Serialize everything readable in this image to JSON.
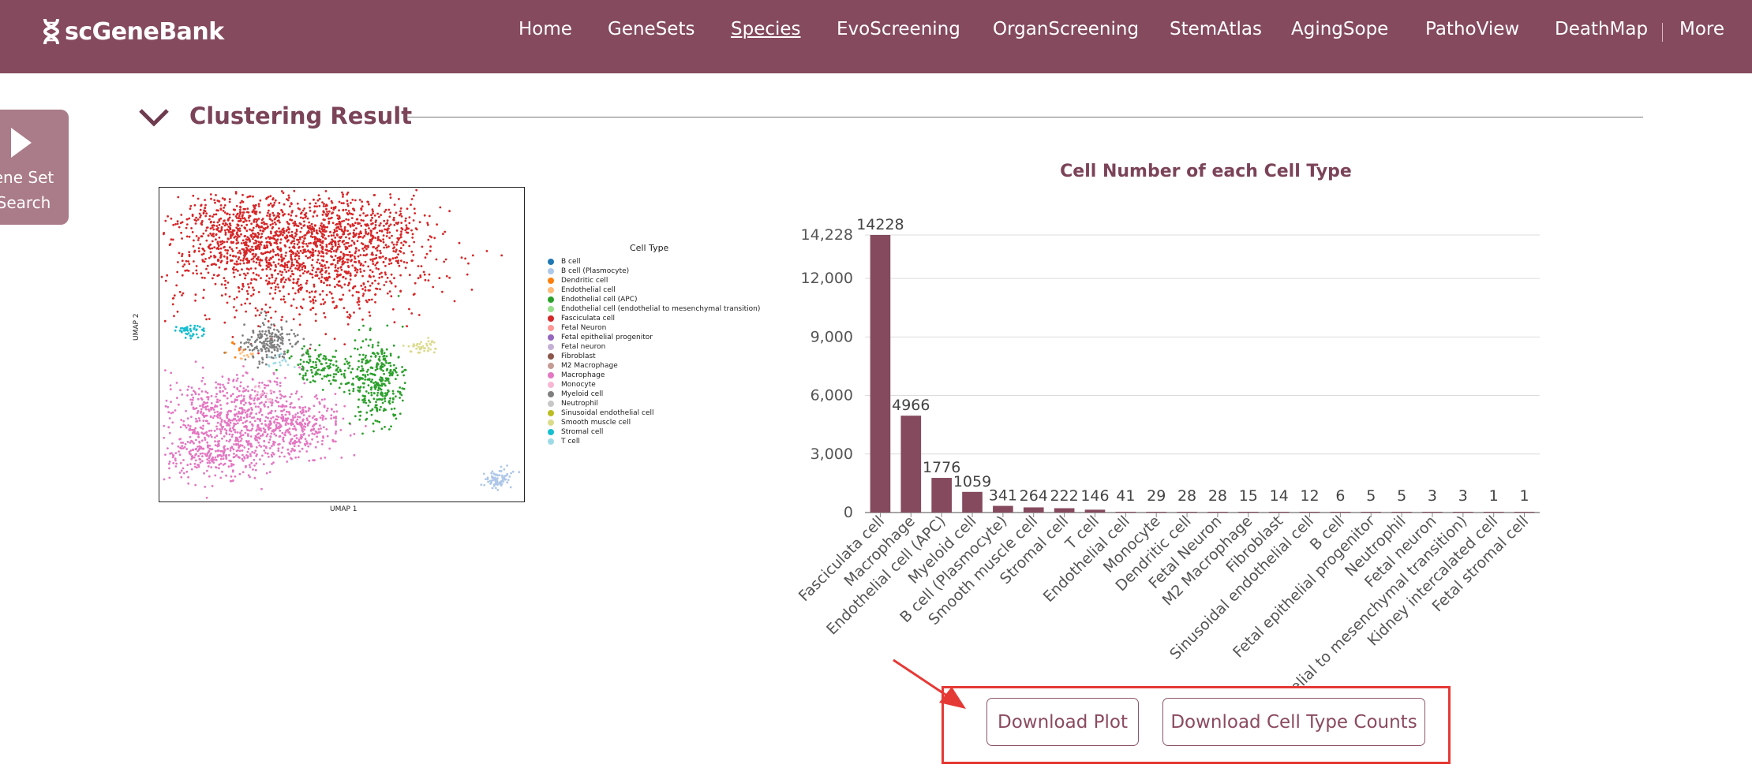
{
  "brand": {
    "name": "scGeneBank"
  },
  "nav": {
    "items": [
      "Home",
      "GeneSets",
      "Species",
      "EvoScreening",
      "OrganScreening",
      "StemAtlas",
      "AgingSope",
      "PathoView",
      "DeathMap",
      "More"
    ],
    "active": "Species"
  },
  "side_tab": {
    "line1": "ene Set",
    "line2": "Search"
  },
  "section": {
    "title": "Clustering Result"
  },
  "umap": {
    "xlabel": "UMAP 1",
    "ylabel": "UMAP 2",
    "legend_title": "Cell Type",
    "legend": [
      {
        "label": "B cell",
        "color": "#1f77b4"
      },
      {
        "label": "B cell (Plasmocyte)",
        "color": "#aec7e8"
      },
      {
        "label": "Dendritic cell",
        "color": "#ff7f0e"
      },
      {
        "label": "Endothelial cell",
        "color": "#ffbb78"
      },
      {
        "label": "Endothelial cell (APC)",
        "color": "#2ca02c"
      },
      {
        "label": "Endothelial cell (endothelial to mesenchymal transition)",
        "color": "#98df8a"
      },
      {
        "label": "Fasciculata cell",
        "color": "#d62728"
      },
      {
        "label": "Fetal Neuron",
        "color": "#ff9896"
      },
      {
        "label": "Fetal epithelial progenitor",
        "color": "#9467bd"
      },
      {
        "label": "Fetal neuron",
        "color": "#c5b0d5"
      },
      {
        "label": "Fibroblast",
        "color": "#8c564b"
      },
      {
        "label": "M2 Macrophage",
        "color": "#c49c94"
      },
      {
        "label": "Macrophage",
        "color": "#e377c2"
      },
      {
        "label": "Monocyte",
        "color": "#f7b6d2"
      },
      {
        "label": "Myeloid cell",
        "color": "#7f7f7f"
      },
      {
        "label": "Neutrophil",
        "color": "#c7c7c7"
      },
      {
        "label": "Sinusoidal endothelial cell",
        "color": "#bcbd22"
      },
      {
        "label": "Smooth muscle cell",
        "color": "#dbdb8d"
      },
      {
        "label": "Stromal cell",
        "color": "#17becf"
      },
      {
        "label": "T cell",
        "color": "#9edae5"
      }
    ]
  },
  "chart_data": {
    "type": "bar",
    "title": "Cell Number of each Cell Type",
    "categories": [
      "Fasciculata cell",
      "Macrophage",
      "Endothelial cell (APC)",
      "Myeloid cell",
      "B cell (Plasmocyte)",
      "Smooth muscle cell",
      "Stromal cell",
      "T cell",
      "Endothelial cell",
      "Monocyte",
      "Dendritic cell",
      "Fetal Neuron",
      "M2 Macrophage",
      "Fibroblast",
      "Sinusoidal endothelial cell",
      "B cell",
      "Fetal epithelial progenitor",
      "Neutrophil",
      "Fetal neuron",
      "Endothelial cell (endothelial to mesenchymal transition)",
      "Kidney intercalated cell",
      "Fetal stromal cell"
    ],
    "tick_labels": [
      "Fasciculata cell",
      "Macrophage",
      "Endothelial cell (APC)",
      "Myeloid cell",
      "B cell (Plasmocyte)",
      "Smooth muscle cell",
      "Stromal cell",
      "T cell",
      "Endothelial cell",
      "Monocyte",
      "Dendritic cell",
      "Fetal Neuron",
      "M2 Macrophage",
      "Fibroblast",
      "Sinusoidal endothelial cell",
      "B cell",
      "Fetal epithelial progenitor",
      "Neutrophil",
      "Fetal neuron",
      "helial to mesenchymal transition)",
      "Kidney intercalated cell",
      "Fetal stromal cell"
    ],
    "values": [
      14228,
      4966,
      1776,
      1059,
      341,
      264,
      222,
      146,
      41,
      29,
      28,
      28,
      15,
      14,
      12,
      6,
      5,
      5,
      3,
      3,
      1,
      1
    ],
    "yticks": [
      "0",
      "3,000",
      "6,000",
      "9,000",
      "12,000",
      "14,228"
    ],
    "ytick_values": [
      0,
      3000,
      6000,
      9000,
      12000,
      14228
    ],
    "ylim": [
      0,
      14228
    ],
    "bar_color": "#854a5e",
    "grid": true
  },
  "downloads": {
    "plot_label": "Download Plot",
    "counts_label": "Download Cell Type Counts"
  },
  "colors": {
    "navbar": "#854a5e",
    "accent": "#7b4358",
    "highlight": "#e53935"
  }
}
